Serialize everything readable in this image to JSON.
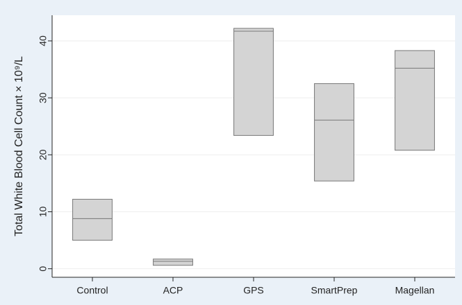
{
  "chart_data": {
    "type": "box",
    "y_label": "Total White Blood Cell Count × 10⁹/L",
    "categories": [
      "Control",
      "ACP",
      "GPS",
      "SmartPrep",
      "Magellan"
    ],
    "lower": [
      5.0,
      0.6,
      23.4,
      15.4,
      20.8
    ],
    "median": [
      8.8,
      1.3,
      41.7,
      26.1,
      35.2
    ],
    "upper": [
      12.2,
      1.7,
      42.2,
      32.5,
      38.3
    ],
    "color": "#d4d4d4",
    "ylim": [
      -1.5,
      44.5
    ],
    "yticks": [
      0,
      10,
      20,
      30,
      40
    ],
    "grid": true
  }
}
